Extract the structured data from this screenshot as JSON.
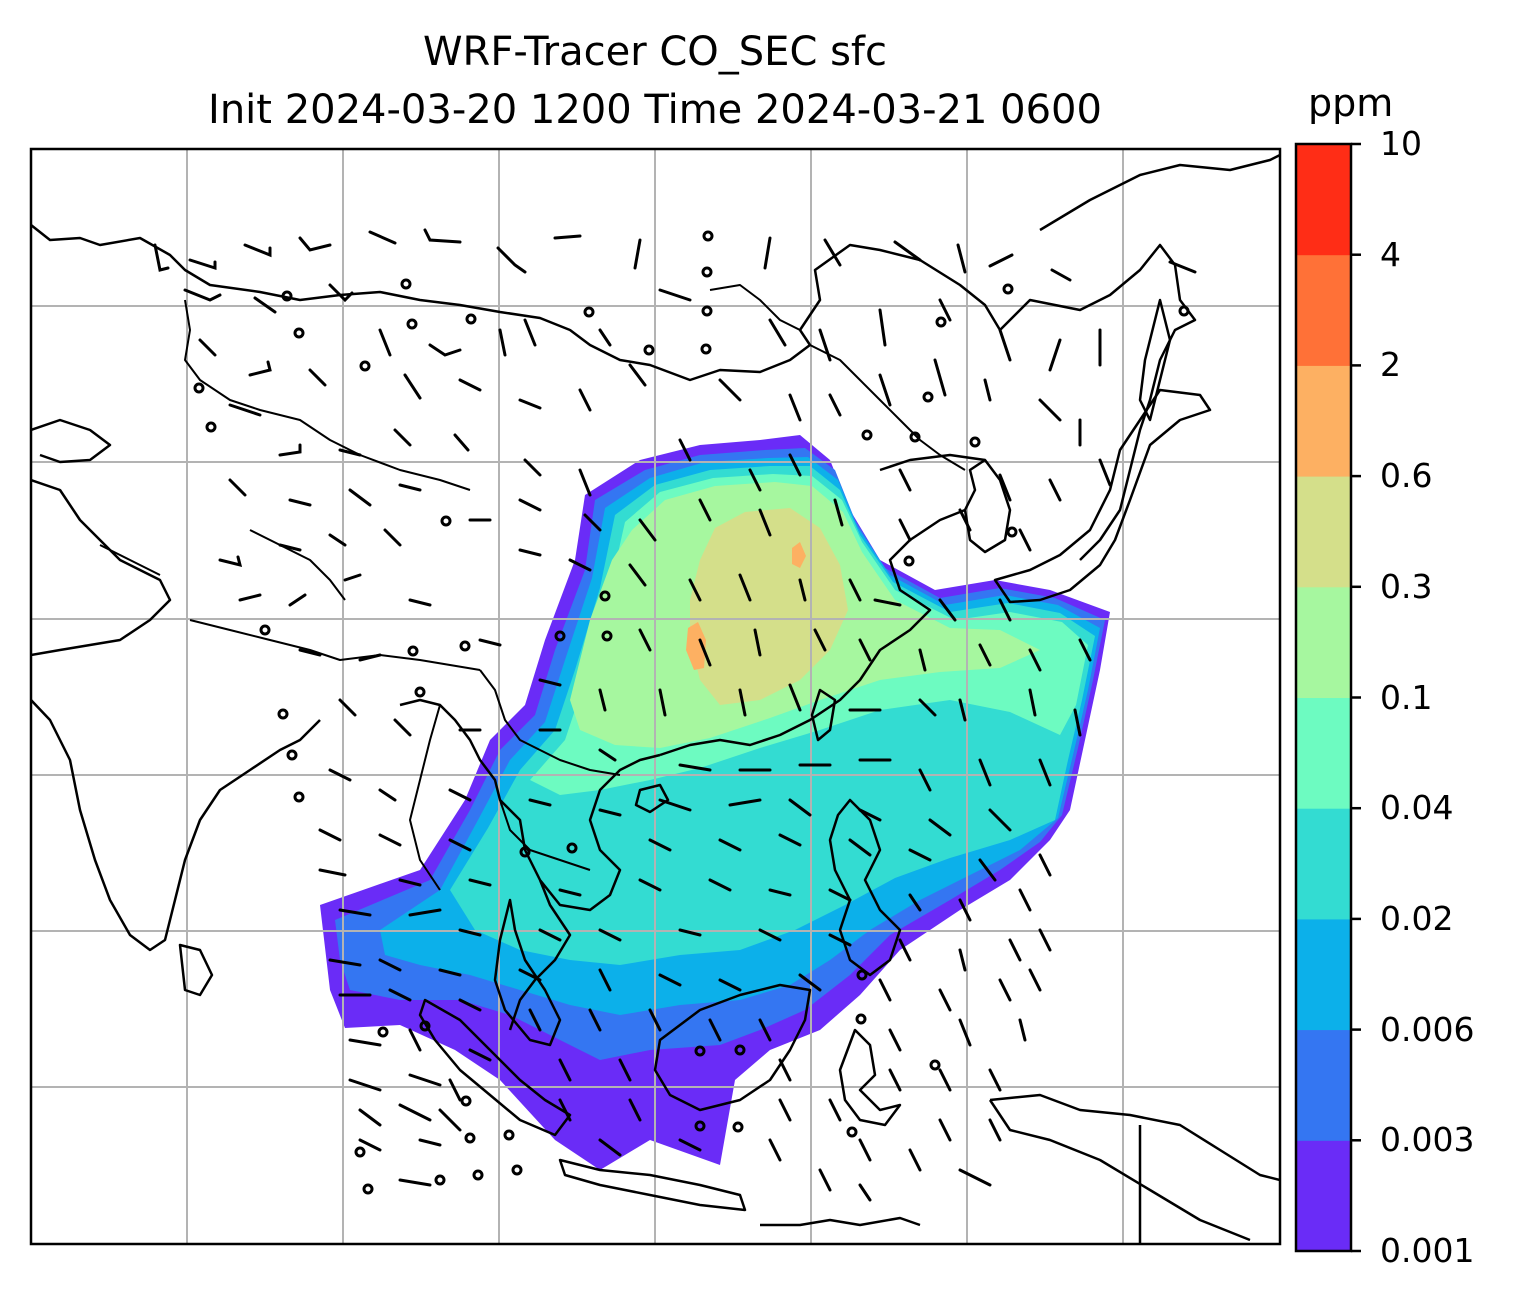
{
  "title": {
    "line1": "WRF-Tracer CO_SEC sfc",
    "line2": "Init 2024-03-20 1200 Time 2024-03-21 0600"
  },
  "colorbar": {
    "unit": "ppm",
    "ticks": [
      "0.001",
      "0.003",
      "0.006",
      "0.02",
      "0.04",
      "0.1",
      "0.3",
      "0.6",
      "2",
      "4",
      "10"
    ],
    "colors": [
      "#6a2cf7",
      "#3476f2",
      "#0cb0ea",
      "#33dcd2",
      "#6dfbc1",
      "#a6f79f",
      "#d4df8a",
      "#fdb062",
      "#ff7137",
      "#ff2d16"
    ]
  },
  "map": {
    "gridlines": "on",
    "coastlines": "on",
    "borders": "on",
    "wind_barbs": "on",
    "field": "CO_SEC tracer concentration"
  }
}
